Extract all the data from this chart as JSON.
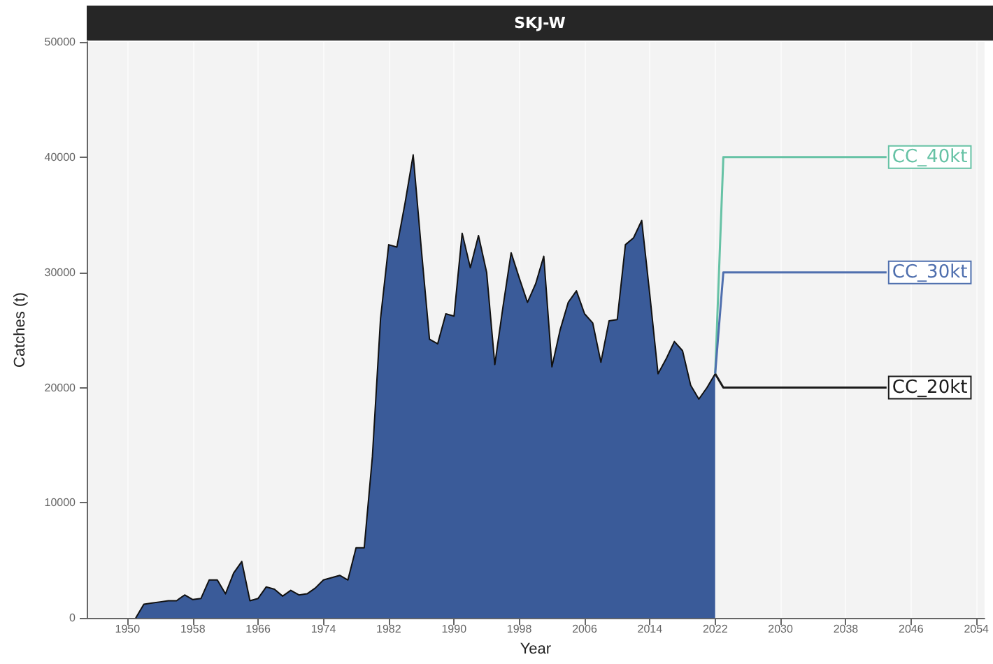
{
  "chart_data": {
    "type": "area",
    "title": "SKJ-W",
    "xlabel": "Year",
    "ylabel": "Catches (t)",
    "xlim": [
      1945,
      2055
    ],
    "xticks": [
      1950,
      1958,
      1966,
      1974,
      1982,
      1990,
      1998,
      2006,
      2014,
      2022,
      2030,
      2038,
      2046,
      2054
    ],
    "ylim": [
      0,
      50000
    ],
    "yticks": [
      0,
      10000,
      20000,
      30000,
      40000,
      50000
    ],
    "grid": "x",
    "series": [
      {
        "color": "#3a5b99",
        "x": [
          1951,
          1952,
          1953,
          1954,
          1955,
          1956,
          1957,
          1958,
          1959,
          1960,
          1961,
          1962,
          1963,
          1964,
          1965,
          1966,
          1967,
          1968,
          1969,
          1970,
          1971,
          1972,
          1973,
          1974,
          1975,
          1976,
          1977,
          1978,
          1979,
          1980,
          1981,
          1982,
          1983,
          1984,
          1985,
          1986,
          1987,
          1988,
          1989,
          1990,
          1991,
          1992,
          1993,
          1994,
          1995,
          1996,
          1997,
          1998,
          1999,
          2000,
          2001,
          2002,
          2003,
          2004,
          2005,
          2006,
          2007,
          2008,
          2009,
          2010,
          2011,
          2012,
          2013,
          2014,
          2015,
          2016,
          2017,
          2018,
          2019,
          2020,
          2021,
          2022
        ],
        "values": [
          0,
          1200,
          1300,
          1400,
          1500,
          1500,
          2000,
          1600,
          1700,
          3300,
          3300,
          2100,
          3900,
          4900,
          1500,
          1700,
          2700,
          2500,
          1900,
          2400,
          2000,
          2100,
          2600,
          3300,
          3500,
          3700,
          3300,
          6100,
          6100,
          14000,
          26000,
          32400,
          32200,
          36000,
          40200,
          32000,
          24200,
          23800,
          26400,
          26200,
          33400,
          30400,
          33200,
          30000,
          22000,
          27000,
          31700,
          29500,
          27400,
          29000,
          31400,
          21800,
          25000,
          27400,
          28400,
          26400,
          25600,
          22200,
          25800,
          25900,
          32400,
          33000,
          34500,
          28000,
          21200,
          22500,
          24000,
          23200,
          20200,
          19000,
          20000,
          21200
        ]
      },
      {
        "type": "line",
        "name": "CC_40kt",
        "color": "#66c2a5",
        "x": [
          2022,
          2023,
          2043
        ],
        "values": [
          21200,
          40000,
          40000
        ]
      },
      {
        "type": "line",
        "name": "CC_30kt",
        "color": "#4f6fae",
        "x": [
          2022,
          2023,
          2043
        ],
        "values": [
          21200,
          30000,
          30000
        ]
      },
      {
        "type": "line",
        "name": "CC_20kt",
        "color": "#1a1a1a",
        "x": [
          2022,
          2023,
          2043
        ],
        "values": [
          21200,
          20000,
          20000
        ]
      }
    ]
  }
}
